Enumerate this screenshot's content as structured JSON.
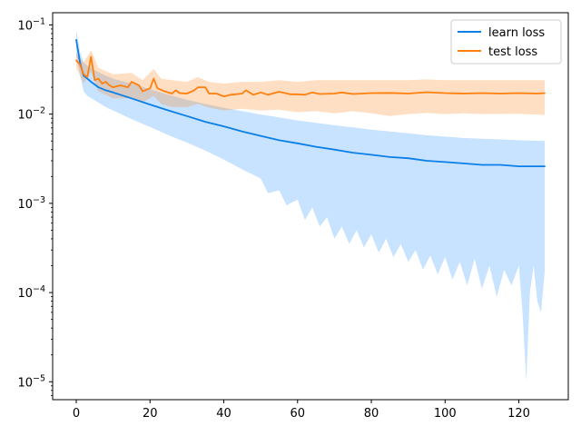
{
  "chart_data": {
    "type": "line",
    "title": "",
    "xlabel": "",
    "ylabel": "",
    "xlim": [
      -6.4,
      133.4
    ],
    "ylim": [
      6.3e-06,
      0.137
    ],
    "yscale": "log",
    "grid": false,
    "legend_position": "upper right",
    "x_ticks": [
      0,
      20,
      40,
      60,
      80,
      100,
      120
    ],
    "x_tick_labels": [
      "0",
      "20",
      "40",
      "60",
      "80",
      "100",
      "120"
    ],
    "y_ticks": [
      1e-05,
      0.0001,
      0.001,
      0.01,
      0.1
    ],
    "y_tick_labels": [
      "10^-5",
      "10^-4",
      "10^-3",
      "10^-2",
      "10^-1"
    ],
    "series": [
      {
        "name": "learn loss",
        "color": "#0a7fe8",
        "band_color": "#1f8fff",
        "band_opacity": 0.25,
        "points": [
          [
            0,
            0.068
          ],
          [
            1,
            0.038
          ],
          [
            2,
            0.027
          ],
          [
            3,
            0.025
          ],
          [
            4,
            0.023
          ],
          [
            5,
            0.0215
          ],
          [
            6,
            0.02
          ],
          [
            8,
            0.0185
          ],
          [
            10,
            0.0175
          ],
          [
            15,
            0.015
          ],
          [
            20,
            0.0128
          ],
          [
            25,
            0.011
          ],
          [
            30,
            0.0095
          ],
          [
            35,
            0.0082
          ],
          [
            40,
            0.0073
          ],
          [
            45,
            0.0064
          ],
          [
            50,
            0.0057
          ],
          [
            55,
            0.0051
          ],
          [
            60,
            0.0047
          ],
          [
            65,
            0.0043
          ],
          [
            70,
            0.004
          ],
          [
            75,
            0.0037
          ],
          [
            80,
            0.0035
          ],
          [
            85,
            0.0033
          ],
          [
            90,
            0.0032
          ],
          [
            95,
            0.003
          ],
          [
            100,
            0.0029
          ],
          [
            105,
            0.0028
          ],
          [
            110,
            0.0027
          ],
          [
            115,
            0.0027
          ],
          [
            120,
            0.0026
          ],
          [
            125,
            0.0026
          ],
          [
            127,
            0.0026
          ]
        ],
        "upper": [
          [
            0,
            0.088
          ],
          [
            1,
            0.05
          ],
          [
            2,
            0.038
          ],
          [
            3,
            0.035
          ],
          [
            5,
            0.031
          ],
          [
            8,
            0.027
          ],
          [
            10,
            0.025
          ],
          [
            15,
            0.022
          ],
          [
            20,
            0.019
          ],
          [
            25,
            0.0165
          ],
          [
            30,
            0.0145
          ],
          [
            35,
            0.013
          ],
          [
            40,
            0.0118
          ],
          [
            45,
            0.0108
          ],
          [
            50,
            0.0099
          ],
          [
            55,
            0.0092
          ],
          [
            60,
            0.0085
          ],
          [
            65,
            0.008
          ],
          [
            70,
            0.0075
          ],
          [
            75,
            0.0071
          ],
          [
            80,
            0.0067
          ],
          [
            85,
            0.0064
          ],
          [
            90,
            0.0061
          ],
          [
            95,
            0.0058
          ],
          [
            100,
            0.0056
          ],
          [
            105,
            0.0054
          ],
          [
            110,
            0.0053
          ],
          [
            115,
            0.0052
          ],
          [
            120,
            0.0051
          ],
          [
            127,
            0.005
          ]
        ],
        "lower": [
          [
            0,
            0.045
          ],
          [
            1,
            0.028
          ],
          [
            2,
            0.018
          ],
          [
            3,
            0.016
          ],
          [
            5,
            0.0143
          ],
          [
            8,
            0.012
          ],
          [
            10,
            0.011
          ],
          [
            15,
            0.0088
          ],
          [
            20,
            0.0072
          ],
          [
            25,
            0.0058
          ],
          [
            30,
            0.0048
          ],
          [
            35,
            0.0039
          ],
          [
            40,
            0.0031
          ],
          [
            45,
            0.0024
          ],
          [
            50,
            0.0019
          ],
          [
            52,
            0.0013
          ],
          [
            55,
            0.0014
          ],
          [
            57,
            0.00095
          ],
          [
            60,
            0.0011
          ],
          [
            62,
            0.00065
          ],
          [
            64,
            0.0009
          ],
          [
            66,
            0.00055
          ],
          [
            68,
            0.0007
          ],
          [
            70,
            0.0004
          ],
          [
            72,
            0.00055
          ],
          [
            74,
            0.00035
          ],
          [
            76,
            0.0005
          ],
          [
            78,
            0.00032
          ],
          [
            80,
            0.00045
          ],
          [
            82,
            0.00028
          ],
          [
            84,
            0.0004
          ],
          [
            86,
            0.00025
          ],
          [
            88,
            0.00035
          ],
          [
            90,
            0.00022
          ],
          [
            92,
            0.0003
          ],
          [
            94,
            0.00018
          ],
          [
            96,
            0.00026
          ],
          [
            98,
            0.00016
          ],
          [
            100,
            0.00025
          ],
          [
            102,
            0.00014
          ],
          [
            104,
            0.00022
          ],
          [
            106,
            0.00012
          ],
          [
            108,
            0.00024
          ],
          [
            110,
            0.00011
          ],
          [
            112,
            0.0002
          ],
          [
            114,
            9e-05
          ],
          [
            116,
            0.00018
          ],
          [
            118,
            0.00012
          ],
          [
            120,
            0.0002
          ],
          [
            121,
            6e-05
          ],
          [
            122,
            1e-05
          ],
          [
            123,
            0.0001
          ],
          [
            124,
            0.0002
          ],
          [
            125,
            8e-05
          ],
          [
            126,
            6e-05
          ],
          [
            127,
            0.00017
          ]
        ]
      },
      {
        "name": "test loss",
        "color": "#ff7f0e",
        "band_color": "#ff7f0e",
        "band_opacity": 0.25,
        "points": [
          [
            0,
            0.04
          ],
          [
            1,
            0.036
          ],
          [
            2,
            0.028
          ],
          [
            3,
            0.026
          ],
          [
            4,
            0.044
          ],
          [
            5,
            0.024
          ],
          [
            6,
            0.025
          ],
          [
            7,
            0.022
          ],
          [
            8,
            0.023
          ],
          [
            9,
            0.021
          ],
          [
            10,
            0.02
          ],
          [
            12,
            0.021
          ],
          [
            14,
            0.02
          ],
          [
            15,
            0.023
          ],
          [
            17,
            0.021
          ],
          [
            18,
            0.018
          ],
          [
            20,
            0.0195
          ],
          [
            21,
            0.025
          ],
          [
            22,
            0.0195
          ],
          [
            24,
            0.018
          ],
          [
            26,
            0.017
          ],
          [
            27,
            0.0185
          ],
          [
            28,
            0.0172
          ],
          [
            30,
            0.017
          ],
          [
            32,
            0.0185
          ],
          [
            33,
            0.02
          ],
          [
            35,
            0.02
          ],
          [
            36,
            0.017
          ],
          [
            38,
            0.017
          ],
          [
            40,
            0.0158
          ],
          [
            42,
            0.0165
          ],
          [
            45,
            0.017
          ],
          [
            46,
            0.0185
          ],
          [
            48,
            0.0165
          ],
          [
            50,
            0.0175
          ],
          [
            52,
            0.0165
          ],
          [
            55,
            0.0178
          ],
          [
            58,
            0.0167
          ],
          [
            60,
            0.0167
          ],
          [
            62,
            0.0165
          ],
          [
            64,
            0.0175
          ],
          [
            66,
            0.0168
          ],
          [
            70,
            0.017
          ],
          [
            72,
            0.0175
          ],
          [
            75,
            0.0168
          ],
          [
            80,
            0.0172
          ],
          [
            85,
            0.0173
          ],
          [
            90,
            0.017
          ],
          [
            95,
            0.0176
          ],
          [
            100,
            0.0172
          ],
          [
            105,
            0.017
          ],
          [
            110,
            0.0172
          ],
          [
            115,
            0.017
          ],
          [
            120,
            0.0172
          ],
          [
            125,
            0.017
          ],
          [
            127,
            0.0172
          ]
        ],
        "upper": [
          [
            0,
            0.048
          ],
          [
            2,
            0.038
          ],
          [
            4,
            0.052
          ],
          [
            6,
            0.033
          ],
          [
            10,
            0.028
          ],
          [
            15,
            0.029
          ],
          [
            18,
            0.024
          ],
          [
            21,
            0.032
          ],
          [
            23,
            0.025
          ],
          [
            26,
            0.024
          ],
          [
            30,
            0.023
          ],
          [
            33,
            0.026
          ],
          [
            36,
            0.023
          ],
          [
            40,
            0.022
          ],
          [
            45,
            0.023
          ],
          [
            50,
            0.023
          ],
          [
            55,
            0.024
          ],
          [
            60,
            0.023
          ],
          [
            65,
            0.024
          ],
          [
            70,
            0.024
          ],
          [
            75,
            0.024
          ],
          [
            80,
            0.024
          ],
          [
            85,
            0.024
          ],
          [
            90,
            0.024
          ],
          [
            95,
            0.0245
          ],
          [
            100,
            0.024
          ],
          [
            110,
            0.024
          ],
          [
            120,
            0.024
          ],
          [
            127,
            0.024
          ]
        ],
        "lower": [
          [
            0,
            0.033
          ],
          [
            2,
            0.022
          ],
          [
            4,
            0.03
          ],
          [
            6,
            0.018
          ],
          [
            10,
            0.015
          ],
          [
            15,
            0.015
          ],
          [
            18,
            0.0135
          ],
          [
            21,
            0.016
          ],
          [
            23,
            0.013
          ],
          [
            26,
            0.012
          ],
          [
            30,
            0.012
          ],
          [
            33,
            0.013
          ],
          [
            36,
            0.0118
          ],
          [
            40,
            0.011
          ],
          [
            45,
            0.0115
          ],
          [
            50,
            0.011
          ],
          [
            55,
            0.0112
          ],
          [
            60,
            0.0105
          ],
          [
            65,
            0.0108
          ],
          [
            70,
            0.0102
          ],
          [
            75,
            0.0108
          ],
          [
            80,
            0.0102
          ],
          [
            85,
            0.0095
          ],
          [
            90,
            0.01
          ],
          [
            95,
            0.0103
          ],
          [
            100,
            0.01
          ],
          [
            105,
            0.0102
          ],
          [
            110,
            0.01
          ],
          [
            120,
            0.0101
          ],
          [
            127,
            0.0098
          ]
        ]
      }
    ]
  }
}
